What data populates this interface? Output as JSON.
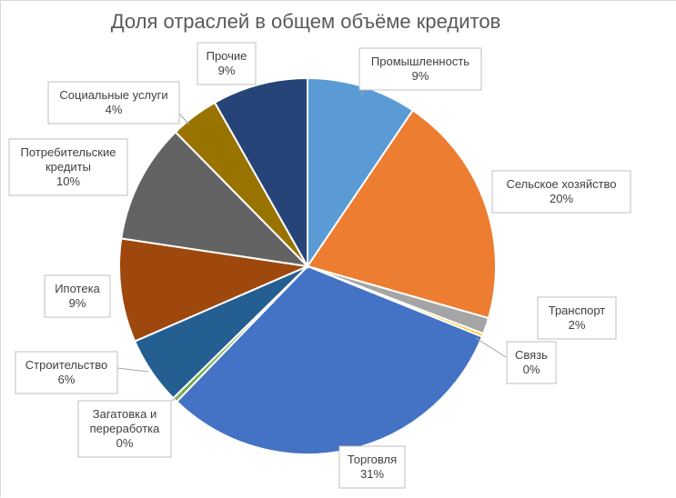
{
  "chart_data": {
    "type": "pie",
    "title": "Доля отраслей в общем объёме кредитов",
    "slices": [
      {
        "name": "Промышленность",
        "value": 9,
        "label": "9%",
        "color": "#5b9bd5"
      },
      {
        "name": "Сельское хозяйство",
        "value": 20,
        "label": "20%",
        "color": "#ed7d31"
      },
      {
        "name": "Транспорт",
        "value": 2,
        "label": "2%",
        "color": "#a5a5a5"
      },
      {
        "name": "Связь",
        "value": 0,
        "label": "0%",
        "color": "#ffc000"
      },
      {
        "name": "Торговля",
        "value": 31,
        "label": "31%",
        "color": "#4472c4"
      },
      {
        "name": "Загатовка и переработка",
        "value": 0,
        "label": "0%",
        "color": "#70ad47"
      },
      {
        "name": "Строительство",
        "value": 6,
        "label": "6%",
        "color": "#255e91"
      },
      {
        "name": "Ипотека",
        "value": 9,
        "label": "9%",
        "color": "#9e480e"
      },
      {
        "name": "Потребительские кредиты",
        "value": 10,
        "label": "10%",
        "color": "#636363"
      },
      {
        "name": "Социальные услуги",
        "value": 4,
        "label": "4%",
        "color": "#997300"
      },
      {
        "name": "Прочие",
        "value": 9,
        "label": "9%",
        "color": "#264478"
      }
    ],
    "data_labels": [
      {
        "lines": [
          "Промышленность",
          "9%"
        ]
      },
      {
        "lines": [
          "Сельское хозяйство",
          "20%"
        ]
      },
      {
        "lines": [
          "Транспорт",
          "2%"
        ]
      },
      {
        "lines": [
          "Связь",
          "0%"
        ]
      },
      {
        "lines": [
          "Торговля",
          "31%"
        ]
      },
      {
        "lines": [
          "Загатовка и",
          "переработка",
          "0%"
        ]
      },
      {
        "lines": [
          "Строительство",
          "6%"
        ]
      },
      {
        "lines": [
          "Ипотека",
          "9%"
        ]
      },
      {
        "lines": [
          "Потребительские",
          "кредиты",
          "10%"
        ]
      },
      {
        "lines": [
          "Социальные услуги",
          "4%"
        ]
      },
      {
        "lines": [
          "Прочие",
          "9%"
        ]
      }
    ],
    "legend": "none"
  }
}
